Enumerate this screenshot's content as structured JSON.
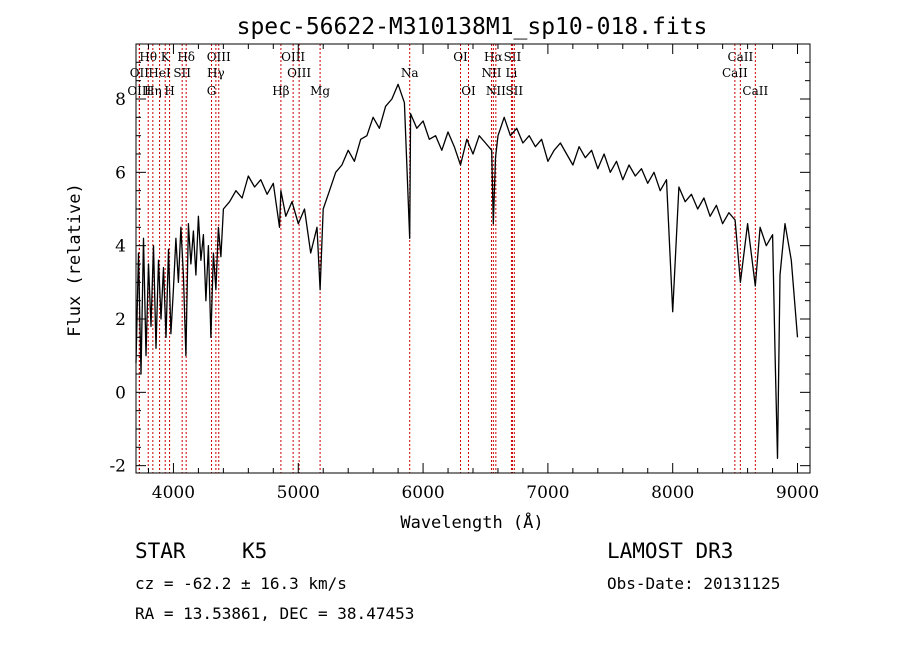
{
  "chart_data": {
    "type": "line",
    "title": "spec-56622-M310138M1_sp10-018.fits",
    "xlabel": "Wavelength (Å)",
    "ylabel": "Flux (relative)",
    "xlim": [
      3700,
      9100
    ],
    "ylim": [
      -2.2,
      9.5
    ],
    "x_ticks": [
      4000,
      5000,
      6000,
      7000,
      8000,
      9000
    ],
    "y_ticks": [
      -2,
      0,
      2,
      4,
      6,
      8
    ],
    "grid": false,
    "series": [
      {
        "name": "flux",
        "x": [
          3700,
          3720,
          3740,
          3760,
          3780,
          3800,
          3820,
          3840,
          3860,
          3880,
          3900,
          3920,
          3940,
          3960,
          3980,
          4000,
          4020,
          4040,
          4060,
          4080,
          4100,
          4120,
          4140,
          4160,
          4180,
          4200,
          4220,
          4240,
          4260,
          4280,
          4300,
          4320,
          4340,
          4360,
          4380,
          4400,
          4450,
          4500,
          4550,
          4600,
          4650,
          4700,
          4750,
          4800,
          4850,
          4861,
          4900,
          4950,
          5000,
          5050,
          5100,
          5150,
          5175,
          5200,
          5250,
          5300,
          5350,
          5400,
          5450,
          5500,
          5550,
          5600,
          5650,
          5700,
          5750,
          5800,
          5850,
          5893,
          5900,
          5950,
          6000,
          6050,
          6100,
          6150,
          6200,
          6250,
          6300,
          6350,
          6400,
          6450,
          6500,
          6550,
          6563,
          6580,
          6600,
          6650,
          6700,
          6750,
          6800,
          6850,
          6900,
          6950,
          7000,
          7050,
          7100,
          7150,
          7200,
          7250,
          7300,
          7350,
          7400,
          7450,
          7500,
          7550,
          7600,
          7650,
          7700,
          7750,
          7800,
          7850,
          7900,
          7950,
          8000,
          8050,
          8100,
          8150,
          8200,
          8250,
          8300,
          8350,
          8400,
          8450,
          8500,
          8542,
          8600,
          8662,
          8700,
          8750,
          8800,
          8820,
          8840,
          8860,
          8900,
          8950,
          9000
        ],
        "values": [
          0.8,
          3.8,
          0.5,
          4.2,
          1.0,
          3.5,
          1.8,
          4.0,
          1.2,
          3.6,
          2.0,
          3.4,
          1.5,
          3.9,
          1.6,
          2.8,
          4.2,
          3.0,
          4.5,
          3.2,
          1.0,
          4.6,
          3.5,
          4.4,
          3.2,
          4.8,
          3.6,
          4.3,
          2.5,
          4.0,
          1.5,
          3.8,
          2.8,
          4.5,
          3.7,
          5.0,
          5.2,
          5.5,
          5.3,
          5.9,
          5.6,
          5.8,
          5.4,
          5.7,
          4.5,
          5.5,
          4.8,
          5.2,
          4.6,
          5.0,
          3.8,
          4.5,
          2.8,
          5.0,
          5.5,
          6.0,
          6.2,
          6.6,
          6.3,
          6.9,
          7.0,
          7.5,
          7.2,
          7.8,
          8.0,
          8.4,
          7.9,
          4.2,
          7.6,
          7.2,
          7.4,
          6.9,
          7.0,
          6.6,
          7.1,
          6.7,
          6.2,
          6.9,
          6.5,
          7.0,
          6.8,
          6.6,
          4.6,
          6.4,
          7.0,
          7.5,
          7.0,
          7.2,
          6.8,
          7.0,
          6.7,
          6.9,
          6.3,
          6.6,
          6.8,
          6.5,
          6.2,
          6.7,
          6.4,
          6.6,
          6.1,
          6.5,
          6.0,
          6.3,
          5.8,
          6.2,
          5.9,
          6.1,
          5.7,
          6.0,
          5.5,
          5.8,
          2.2,
          5.6,
          5.2,
          5.4,
          5.0,
          5.3,
          4.8,
          5.1,
          4.6,
          4.9,
          4.7,
          3.0,
          4.6,
          2.9,
          4.5,
          4.0,
          4.3,
          1.0,
          -1.8,
          3.2,
          4.6,
          3.6,
          1.5
        ],
        "color": "#000000"
      }
    ],
    "lines": [
      {
        "name": "Hθ",
        "x": 3798,
        "row": 1
      },
      {
        "name": "OII",
        "x": 3727,
        "row": 2
      },
      {
        "name": "OIII",
        "x": 3727,
        "row": 3
      },
      {
        "name": "HeI",
        "x": 3889,
        "row": 2
      },
      {
        "name": "Hη",
        "x": 3835,
        "row": 3
      },
      {
        "name": "K",
        "x": 3934,
        "row": 1
      },
      {
        "name": "SII",
        "x": 4070,
        "row": 2
      },
      {
        "name": "H",
        "x": 3969,
        "row": 3
      },
      {
        "name": "Hδ",
        "x": 4102,
        "row": 1
      },
      {
        "name": "OIII",
        "x": 4363,
        "row": 1
      },
      {
        "name": "Hγ",
        "x": 4340,
        "row": 2
      },
      {
        "name": "G",
        "x": 4305,
        "row": 3
      },
      {
        "name": "OIII",
        "x": 4959,
        "row": 1
      },
      {
        "name": "OIII",
        "x": 5007,
        "row": 2
      },
      {
        "name": "Hβ",
        "x": 4861,
        "row": 3
      },
      {
        "name": "Mg",
        "x": 5175,
        "row": 3
      },
      {
        "name": "Na",
        "x": 5893,
        "row": 2
      },
      {
        "name": "OI",
        "x": 6300,
        "row": 1
      },
      {
        "name": "OI",
        "x": 6364,
        "row": 3
      },
      {
        "name": "Hα",
        "x": 6563,
        "row": 1
      },
      {
        "name": "NII",
        "x": 6548,
        "row": 2
      },
      {
        "name": "NII",
        "x": 6583,
        "row": 3
      },
      {
        "name": "SII",
        "x": 6716,
        "row": 1
      },
      {
        "name": "Li",
        "x": 6708,
        "row": 2
      },
      {
        "name": "SII",
        "x": 6731,
        "row": 3
      },
      {
        "name": "CaII",
        "x": 8542,
        "row": 1
      },
      {
        "name": "CaII",
        "x": 8498,
        "row": 2
      },
      {
        "name": "CaII",
        "x": 8662,
        "row": 3
      }
    ],
    "line_color": "#cc0000"
  },
  "info": {
    "class_label": "STAR",
    "subclass_label": "K5",
    "survey": "LAMOST DR3",
    "cz": "cz = -62.2 ± 16.3 km/s",
    "obs_date": "Obs-Date: 20131125",
    "coords": "RA =  13.53861, DEC =  38.47453"
  }
}
